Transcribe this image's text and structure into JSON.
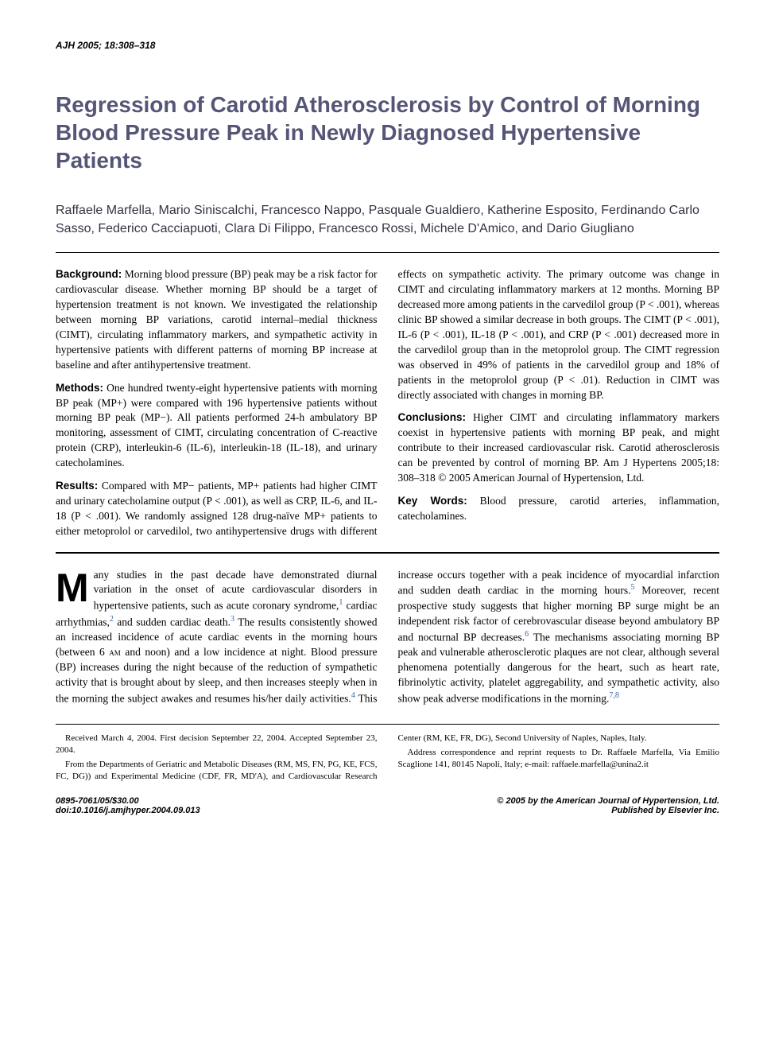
{
  "journal_header": "AJH  2005; 18:308–318",
  "title": "Regression of Carotid Atherosclerosis by Control of Morning Blood Pressure Peak in Newly Diagnosed Hypertensive Patients",
  "authors": "Raffaele Marfella, Mario Siniscalchi, Francesco Nappo, Pasquale Gualdiero, Katherine Esposito, Ferdinando Carlo Sasso, Federico Cacciapuoti, Clara Di Filippo, Francesco Rossi, Michele D'Amico, and Dario Giugliano",
  "abstract": {
    "background": {
      "label": "Background:",
      "text": " Morning blood pressure (BP) peak may be a risk factor for cardiovascular disease. Whether morning BP should be a target of hypertension treatment is not known. We investigated the relationship between morning BP variations, carotid internal–medial thickness (CIMT), circulating inflammatory markers, and sympathetic activity in hypertensive patients with different patterns of morning BP increase at baseline and after antihypertensive treatment."
    },
    "methods": {
      "label": "Methods:",
      "text": " One hundred twenty-eight hypertensive patients with morning BP peak (MP+) were compared with 196 hypertensive patients without morning BP peak (MP−). All patients performed 24-h ambulatory BP monitoring, assessment of CIMT, circulating concentration of C-reactive protein (CRP), interleukin-6 (IL-6), interleukin-18 (IL-18), and urinary catecholamines."
    },
    "results": {
      "label": "Results:",
      "text": " Compared with MP− patients, MP+ patients had higher CIMT and urinary catecholamine output (P < .001), as well as CRP, IL-6, and IL-18 (P < .001). We randomly assigned 128 drug-naïve MP+ patients to either metoprolol or carvedilol, two antihypertensive drugs with different effects on sympathetic activity. The primary outcome was change in CIMT and circulating inflammatory markers at 12 months. Morning BP decreased more among patients in the carvedilol group (P < .001), whereas clinic BP showed a similar decrease in both groups. The CIMT (P < .001), IL-6 (P < .001), IL-18 (P < .001), and CRP (P < .001) decreased more in the carvedilol group than in the metoprolol group. The CIMT regression was observed in 49% of patients in the carvedilol group and 18% of patients in the metoprolol group (P < .01). Reduction in CIMT was directly associated with changes in morning BP."
    },
    "conclusions": {
      "label": "Conclusions:",
      "text": " Higher CIMT and circulating inflammatory markers coexist in hypertensive patients with morning BP peak, and might contribute to their increased cardiovascular risk. Carotid atherosclerosis can be prevented by control of morning BP.  Am J Hypertens 2005;18: 308–318 © 2005 American Journal of Hypertension, Ltd."
    },
    "keywords": {
      "label": "Key Words:",
      "text": " Blood pressure, carotid arteries, inflammation, catecholamines."
    }
  },
  "body": {
    "dropcap": "M",
    "para1_part1": "any studies in the past decade have demonstrated diurnal variation in the onset of acute cardiovascular disorders in hypertensive patients, such as acute coronary syndrome,",
    "ref1": "1",
    "para1_part2": " cardiac arrhythmias,",
    "ref2": "2",
    "para1_part3": " and sudden cardiac death.",
    "ref3": "3",
    "para1_part4": " The results consistently showed an increased incidence of acute cardiac events in the morning hours (between 6 ",
    "am": "am",
    "para1_part5": " and noon) and a low incidence at night. Blood pressure (BP) increases during the night because of the reduction of sympathetic activity that is brought about by sleep, and then increases steeply when in the morning the subject awakes and resumes his/her daily activities.",
    "ref4": "4",
    "para1_part6": " This increase occurs together with a peak incidence of myocardial infarction and sudden death cardiac in the morning hours.",
    "ref5": "5",
    "para1_part7": " Moreover, recent prospective study suggests that higher morning BP surge might be an independent risk factor of cerebrovascular disease beyond ambulatory BP and nocturnal BP decreases.",
    "ref6": "6",
    "para1_part8": " The mechanisms associating morning BP peak and vulnerable atherosclerotic plaques are not clear, although several phenomena potentially dangerous for the heart, such as heart rate, fibrinolytic activity, platelet aggregability, and sympathetic activity, also show peak adverse modifications in the morning.",
    "ref78": "7,8"
  },
  "footer": {
    "received": "Received March 4, 2004. First decision September 22, 2004. Accepted September 23, 2004.",
    "from": "From the Departments of Geriatric and Metabolic Diseases (RM, MS, FN, PG, KE, FCS, FC, DG)) and Experimental Medicine (CDF, FR, MD'A), and Cardiovascular Research Center (RM, KE, FR, DG), Second University of Naples, Naples, Italy.",
    "address": "Address correspondence and reprint requests to Dr. Raffaele Marfella, Via Emilio Scaglione 141, 80145 Napoli, Italy; e-mail: raffaele.marfella@unina2.it"
  },
  "bottom": {
    "issn": "0895-7061/05/$30.00",
    "doi": "doi:10.1016/j.amjhyper.2004.09.013",
    "copyright": "© 2005 by the American Journal of Hypertension, Ltd.",
    "publisher": "Published by Elsevier Inc."
  },
  "colors": {
    "title_color": "#555577",
    "author_color": "#333344",
    "link_color": "#3366aa",
    "text_color": "#000000",
    "background": "#ffffff"
  },
  "typography": {
    "title_fontsize": 28,
    "author_fontsize": 16,
    "abstract_fontsize": 13.5,
    "body_fontsize": 13.5,
    "footer_fontsize": 11,
    "dropcap_fontsize": 50
  }
}
